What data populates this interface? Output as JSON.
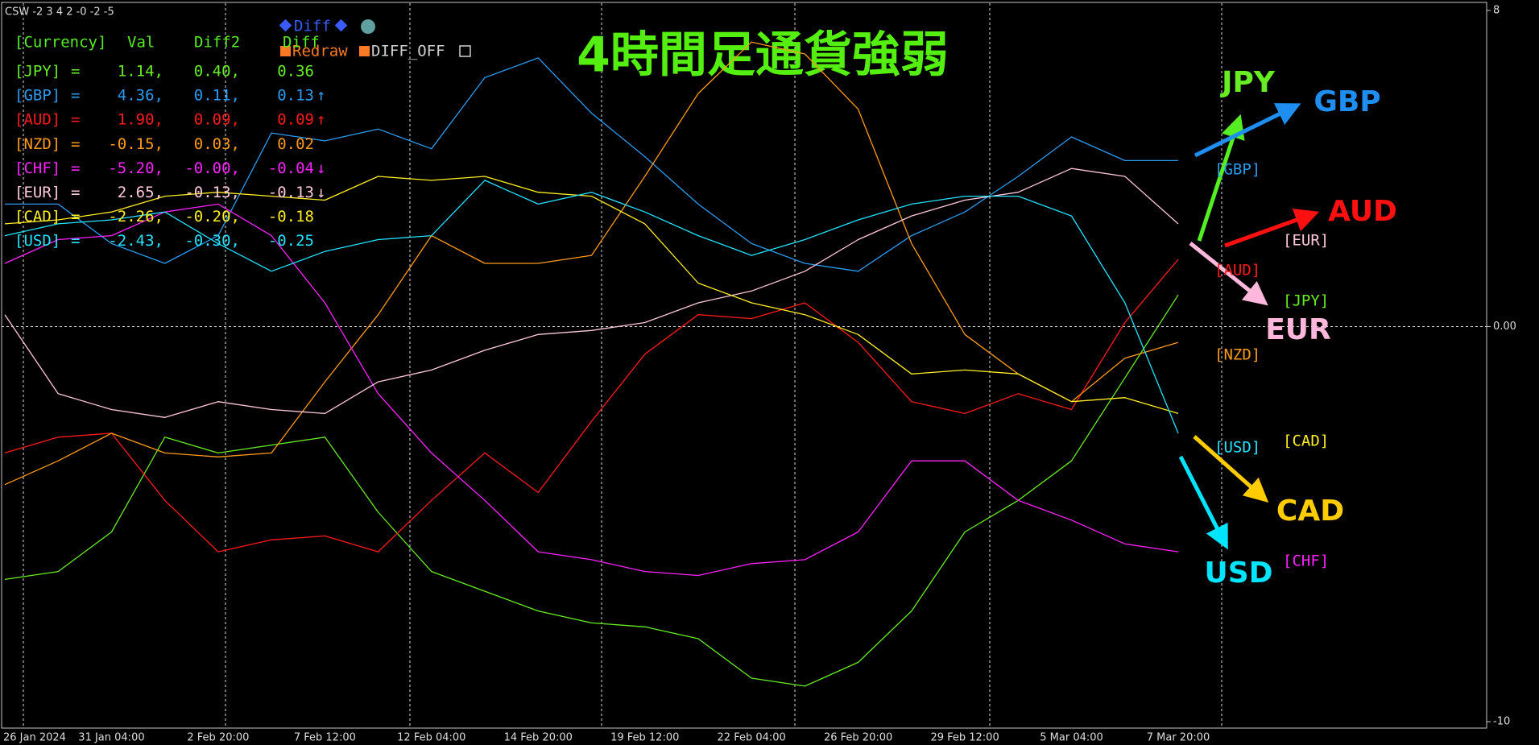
{
  "chart_data": {
    "type": "line",
    "header": "CSW -2 3 4 2 -0 -2 -5",
    "title": "4時間足通貨強弱",
    "x": [
      "26 Jan 2024",
      null,
      "31 Jan 04:00",
      null,
      "2 Feb 20:00",
      null,
      "7 Feb 12:00",
      null,
      "12 Feb 04:00",
      null,
      "14 Feb 20:00",
      null,
      "19 Feb 12:00",
      null,
      "22 Feb 04:00",
      null,
      "26 Feb 20:00",
      null,
      "29 Feb 12:00",
      null,
      "5 Mar 04:00",
      null,
      "7 Mar 20:00"
    ],
    "ylim": [
      -10,
      8
    ],
    "yticks": [
      -10,
      {
        "value": 0,
        "label": "0.00"
      },
      8
    ],
    "grid": true,
    "series": [
      {
        "name": "JPY",
        "color": "#66ee22",
        "values": [
          -6.4,
          -6.2,
          -5.2,
          -2.8,
          -3.2,
          -3.0,
          -2.8,
          -4.7,
          -6.2,
          -6.7,
          -7.2,
          -7.5,
          -7.6,
          -7.9,
          -8.9,
          -9.1,
          -8.5,
          -7.2,
          -5.2,
          -4.4,
          -3.4,
          -1.3,
          0.8
        ]
      },
      {
        "name": "GBP",
        "color": "#2a9cf0",
        "values": [
          3.1,
          3.1,
          2.1,
          1.6,
          2.3,
          4.9,
          4.7,
          5.0,
          4.5,
          6.3,
          6.8,
          5.4,
          4.3,
          3.1,
          2.1,
          1.6,
          1.4,
          2.3,
          2.9,
          3.8,
          4.8,
          4.2,
          4.2
        ]
      },
      {
        "name": "AUD",
        "color": "#ff1a1a",
        "values": [
          -3.2,
          -2.8,
          -2.7,
          -4.4,
          -5.7,
          -5.4,
          -5.3,
          -5.7,
          -4.4,
          -3.2,
          -4.2,
          -2.4,
          -0.7,
          0.3,
          0.2,
          0.6,
          -0.4,
          -1.9,
          -2.2,
          -1.7,
          -2.1,
          0.1,
          1.7
        ]
      },
      {
        "name": "NZD",
        "color": "#ff9a1a",
        "values": [
          -4.0,
          -3.4,
          -2.7,
          -3.2,
          -3.3,
          -3.2,
          -1.4,
          0.3,
          2.3,
          1.6,
          1.6,
          1.8,
          3.8,
          5.9,
          7.2,
          6.9,
          5.5,
          2.1,
          -0.2,
          -1.2,
          -1.9,
          -0.8,
          -0.4
        ]
      },
      {
        "name": "CHF",
        "color": "#ff22ff",
        "values": [
          1.6,
          2.2,
          2.3,
          2.9,
          3.1,
          2.3,
          0.6,
          -1.7,
          -3.2,
          -4.4,
          -5.7,
          -5.9,
          -6.2,
          -6.3,
          -6.0,
          -5.9,
          -5.2,
          -3.4,
          -3.4,
          -4.4,
          -4.9,
          -5.5,
          -5.7
        ]
      },
      {
        "name": "EUR",
        "color": "#ffc8dc",
        "values": [
          0.3,
          -1.7,
          -2.1,
          -2.3,
          -1.9,
          -2.1,
          -2.2,
          -1.4,
          -1.1,
          -0.6,
          -0.2,
          -0.1,
          0.1,
          0.6,
          0.9,
          1.4,
          2.2,
          2.8,
          3.2,
          3.4,
          4.0,
          3.8,
          2.6
        ]
      },
      {
        "name": "CAD",
        "color": "#ffee22",
        "values": [
          2.6,
          2.7,
          2.9,
          3.3,
          3.4,
          3.3,
          3.2,
          3.8,
          3.7,
          3.8,
          3.4,
          3.3,
          2.6,
          1.1,
          0.6,
          0.3,
          -0.2,
          -1.2,
          -1.1,
          -1.2,
          -1.9,
          -1.8,
          -2.2
        ]
      },
      {
        "name": "USD",
        "color": "#22e4ff",
        "values": [
          2.3,
          2.6,
          2.7,
          2.9,
          2.1,
          1.4,
          1.9,
          2.2,
          2.3,
          3.7,
          3.1,
          3.4,
          2.9,
          2.3,
          1.8,
          2.2,
          2.7,
          3.1,
          3.3,
          3.3,
          2.8,
          0.6,
          -2.7
        ]
      }
    ],
    "table": {
      "columns": [
        "[Currency]",
        "Val",
        "Diff2",
        "Diff"
      ],
      "rows": [
        {
          "name": "[JPY]",
          "eq": "=",
          "val": "1.14,",
          "diff2": "0.40,",
          "diff": "0.36"
        },
        {
          "name": "[GBP]",
          "eq": "=",
          "val": "4.36,",
          "diff2": "0.11,",
          "diff": "0.13",
          "trend": "↑"
        },
        {
          "name": "[AUD]",
          "eq": "=",
          "val": "1.90,",
          "diff2": "0.09,",
          "diff": "0.09",
          "trend": "↑"
        },
        {
          "name": "[NZD]",
          "eq": "=",
          "val": "-0.15,",
          "diff2": "0.03,",
          "diff": "0.02"
        },
        {
          "name": "[CHF]",
          "eq": "=",
          "val": "-5.20,",
          "diff2": "-0.00,",
          "diff": "-0.04",
          "trend": "↓"
        },
        {
          "name": "[EUR]",
          "eq": "=",
          "val": "2.65,",
          "diff2": "-0.13,",
          "diff": "-0.13",
          "trend": "↓"
        },
        {
          "name": "[CAD]",
          "eq": "=",
          "val": "-2.26,",
          "diff2": "-0.20,",
          "diff": "-0.18"
        },
        {
          "name": "[USD]",
          "eq": "=",
          "val": "-2.43,",
          "diff2": "-0.30,",
          "diff": "-0.25"
        }
      ]
    },
    "buttons": [
      "Diff",
      "Redraw",
      "DIFF_OFF"
    ],
    "annotations": [
      {
        "text": "JPY",
        "color": "#66ee22"
      },
      {
        "text": "GBP",
        "color": "#1e8ef0"
      },
      {
        "text": "AUD",
        "color": "#ff1010"
      },
      {
        "text": "EUR",
        "color": "#ffb8dc"
      },
      {
        "text": "CAD",
        "color": "#ffcc00"
      },
      {
        "text": "USD",
        "color": "#00e5ff"
      }
    ]
  }
}
